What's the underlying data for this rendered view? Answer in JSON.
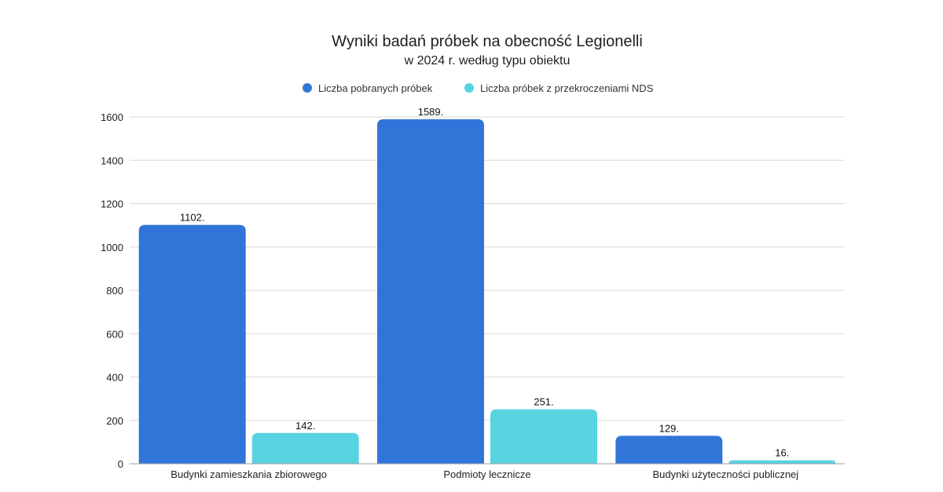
{
  "chart_data": {
    "type": "bar",
    "title": "Wyniki badań próbek na obecność Legionelli",
    "subtitle": "w 2024 r. według typu obiektu",
    "categories": [
      "Budynki zamieszkania zbiorowego",
      "Podmioty lecznicze",
      "Budynki użyteczności publicznej"
    ],
    "series": [
      {
        "name": "Liczba pobranych próbek",
        "values": [
          1102,
          1589,
          129
        ],
        "labels": [
          "1102.",
          "1589.",
          "129."
        ],
        "color": "#3175d9"
      },
      {
        "name": "Liczba próbek z przekroczeniami NDS",
        "values": [
          142,
          251,
          16
        ],
        "labels": [
          "142.",
          "251.",
          "16."
        ],
        "color": "#58d3e1"
      }
    ],
    "yticks": [
      0,
      200,
      400,
      600,
      800,
      1000,
      1200,
      1400,
      1600
    ],
    "ylim": [
      0,
      1600
    ],
    "xlabel": "",
    "ylabel": "",
    "grid": true,
    "legend_position": "top-center"
  }
}
